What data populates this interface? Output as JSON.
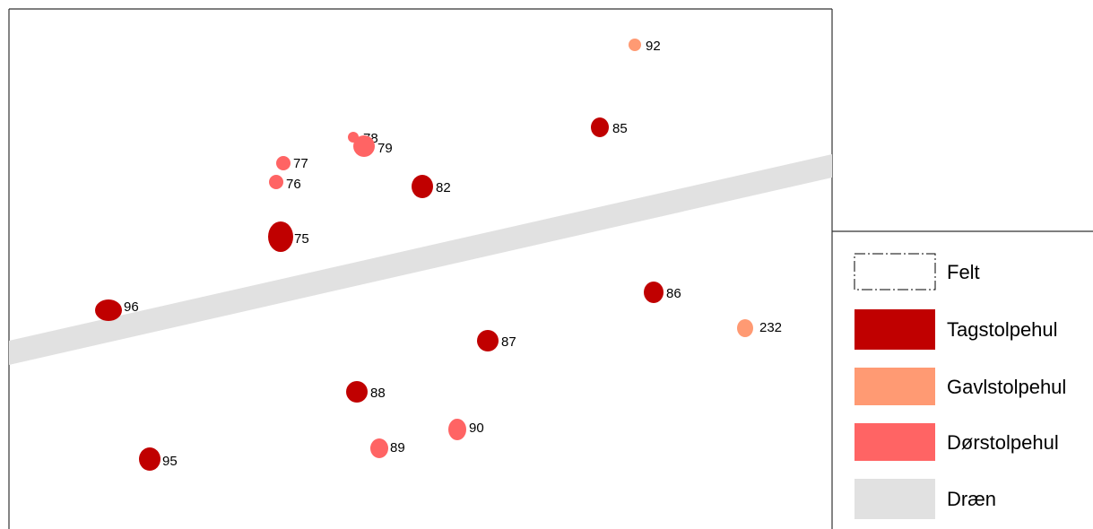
{
  "map": {
    "colors": {
      "tagstolpehul": "#c00000",
      "gavlstolpehul": "#ff9a73",
      "dorstolpehul": "#ff6464",
      "draen": "#e1e1e1",
      "frame": "#333333"
    },
    "features": [
      {
        "label": "92",
        "type": "gavlstolpehul"
      },
      {
        "label": "85",
        "type": "tagstolpehul"
      },
      {
        "label": "78",
        "type": "dorstolpehul"
      },
      {
        "label": "79",
        "type": "dorstolpehul"
      },
      {
        "label": "77",
        "type": "dorstolpehul"
      },
      {
        "label": "76",
        "type": "dorstolpehul"
      },
      {
        "label": "82",
        "type": "tagstolpehul"
      },
      {
        "label": "75",
        "type": "tagstolpehul"
      },
      {
        "label": "96",
        "type": "tagstolpehul"
      },
      {
        "label": "86",
        "type": "tagstolpehul"
      },
      {
        "label": "232",
        "type": "gavlstolpehul"
      },
      {
        "label": "87",
        "type": "tagstolpehul"
      },
      {
        "label": "88",
        "type": "tagstolpehul"
      },
      {
        "label": "90",
        "type": "dorstolpehul"
      },
      {
        "label": "89",
        "type": "dorstolpehul"
      },
      {
        "label": "95",
        "type": "tagstolpehul"
      }
    ]
  },
  "legend": {
    "felt": "Felt",
    "tagstolpehul": "Tagstolpehul",
    "gavlstolpehul": "Gavlstolpehul",
    "dorstolpehul": "Dørstolpehul",
    "draen": "Dræn"
  }
}
